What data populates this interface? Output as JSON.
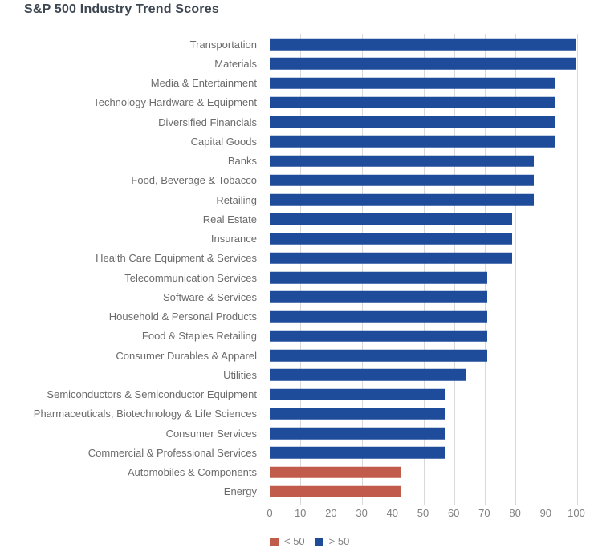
{
  "chart_data": {
    "type": "bar",
    "orientation": "horizontal",
    "title": "S&P 500 Industry Trend Scores",
    "xlabel": "",
    "ylabel": "",
    "xlim": [
      0,
      100
    ],
    "xticks": [
      0,
      10,
      20,
      30,
      40,
      50,
      60,
      70,
      80,
      90,
      100
    ],
    "grid": true,
    "legend_position": "bottom",
    "threshold": 50,
    "categories": [
      "Transportation",
      "Materials",
      "Media & Entertainment",
      "Technology Hardware & Equipment",
      "Diversified Financials",
      "Capital Goods",
      "Banks",
      "Food, Beverage & Tobacco",
      "Retailing",
      "Real Estate",
      "Insurance",
      "Health Care Equipment & Services",
      "Telecommunication Services",
      "Software & Services",
      "Household & Personal Products",
      "Food & Staples Retailing",
      "Consumer Durables & Apparel",
      "Utilities",
      "Semiconductors & Semiconductor Equipment",
      "Pharmaceuticals, Biotechnology & Life Sciences",
      "Consumer Services",
      "Commercial & Professional Services",
      "Automobiles & Components",
      "Energy"
    ],
    "values": [
      100,
      100,
      93,
      93,
      93,
      93,
      86,
      86,
      86,
      79,
      79,
      79,
      71,
      71,
      71,
      71,
      71,
      64,
      57,
      57,
      57,
      57,
      43,
      43
    ],
    "colors": {
      "above_threshold": "#1e4c9a",
      "below_threshold": "#c15b4b",
      "gridline": "#d9d9d9",
      "title_text": "#3d4752",
      "label_text": "#6b6b6b",
      "tick_text": "#7f7f7f"
    },
    "legend": [
      {
        "label": "< 50",
        "color": "#c15b4b"
      },
      {
        "label": "> 50",
        "color": "#1e4c9a"
      }
    ]
  }
}
